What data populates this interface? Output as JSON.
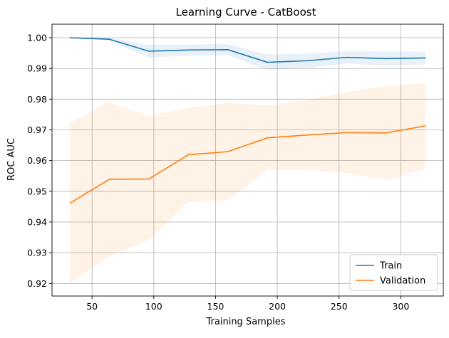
{
  "chart_data": {
    "type": "line",
    "title": "Learning Curve - CatBoost",
    "xlabel": "Training Samples",
    "ylabel": "ROC AUC",
    "xlim": [
      17.6,
      334.4
    ],
    "ylim": [
      0.9159,
      1.0044
    ],
    "xticks": [
      50,
      100,
      150,
      200,
      250,
      300
    ],
    "yticks": [
      0.92,
      0.93,
      0.94,
      0.95,
      0.96,
      0.97,
      0.98,
      0.99,
      1.0
    ],
    "grid": true,
    "legend_position": "lower-right",
    "x": [
      32,
      64,
      96,
      128,
      160,
      192,
      224,
      256,
      288,
      320
    ],
    "series": [
      {
        "name": "Train",
        "color": "#1f77b4",
        "values": [
          1.0,
          0.9995,
          0.9956,
          0.996,
          0.9961,
          0.992,
          0.9925,
          0.9936,
          0.9932,
          0.9934
        ],
        "band_upper": [
          1.0,
          1.0,
          0.9977,
          0.9978,
          0.9979,
          0.9945,
          0.9948,
          0.9956,
          0.9955,
          0.9955
        ],
        "band_lower": [
          1.0,
          0.999,
          0.9935,
          0.9942,
          0.9943,
          0.9895,
          0.9902,
          0.9916,
          0.9909,
          0.9913
        ]
      },
      {
        "name": "Validation",
        "color": "#ff7f0e",
        "values": [
          0.9461,
          0.9539,
          0.954,
          0.9619,
          0.9629,
          0.9674,
          0.9683,
          0.9691,
          0.969,
          0.9713
        ],
        "band_upper": [
          0.9723,
          0.9791,
          0.9743,
          0.9773,
          0.9787,
          0.9779,
          0.9797,
          0.9823,
          0.9843,
          0.9853
        ],
        "band_lower": [
          0.92,
          0.9287,
          0.9342,
          0.9465,
          0.9471,
          0.957,
          0.9569,
          0.956,
          0.9537,
          0.9573
        ]
      }
    ]
  }
}
